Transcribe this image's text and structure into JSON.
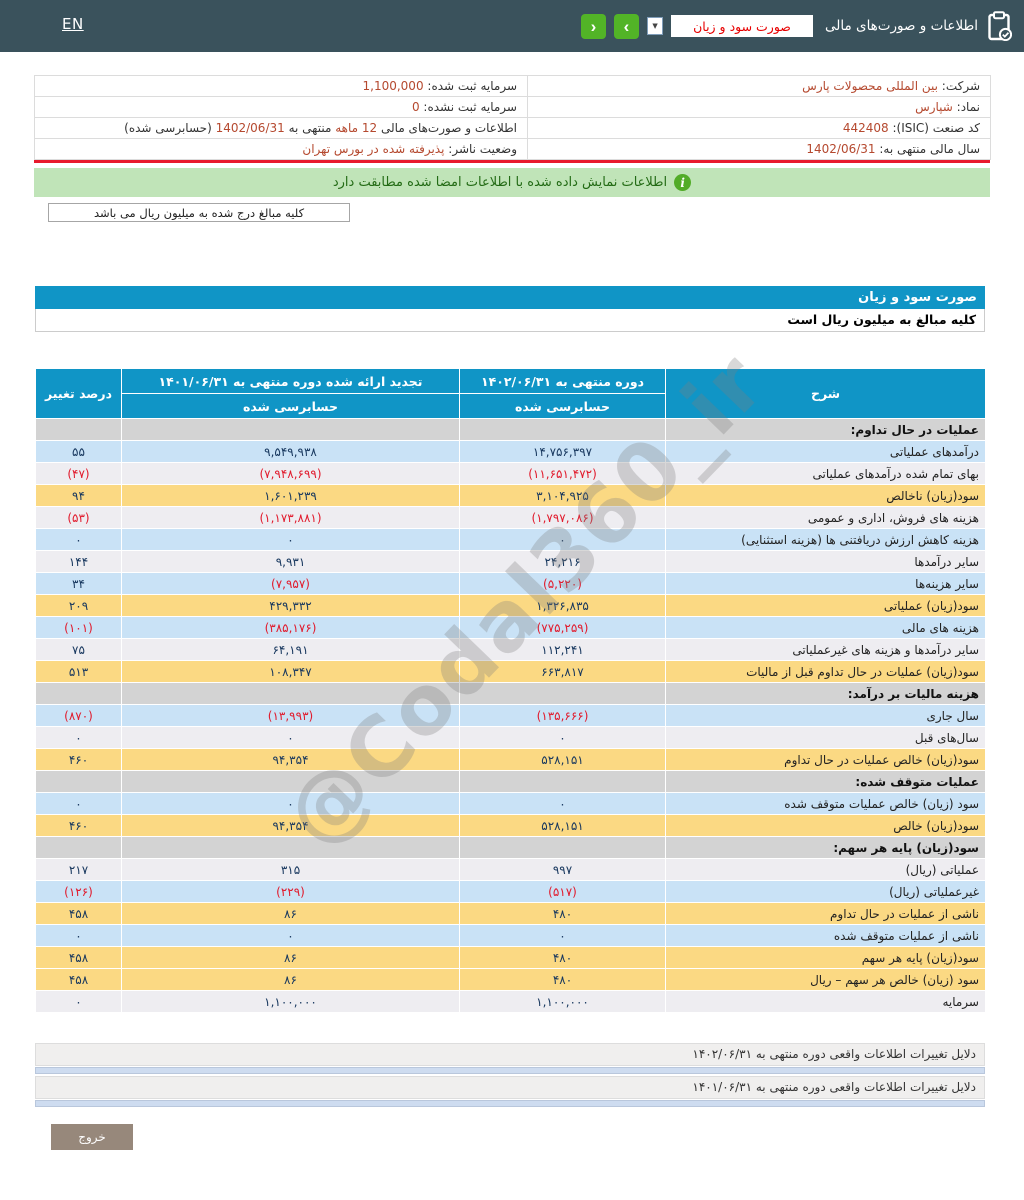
{
  "header": {
    "language_link": "EN",
    "section_title": "اطلاعات و صورت‌های مالی",
    "statement_select_value": "صورت سود و زیان",
    "select_arrow": "▼",
    "prev_button": "‹",
    "next_button": "›"
  },
  "company_info": {
    "rows": [
      {
        "right": [
          {
            "t": "شرکت:",
            "hl": false
          },
          {
            "t": "بین المللی محصولات پارس",
            "hl": true
          }
        ],
        "left": [
          {
            "t": "سرمایه ثبت شده:",
            "hl": false
          },
          {
            "t": "1,100,000",
            "hl": true
          }
        ]
      },
      {
        "right": [
          {
            "t": "نماد:",
            "hl": false
          },
          {
            "t": "شپارس",
            "hl": true
          }
        ],
        "left": [
          {
            "t": "سرمایه ثبت نشده:",
            "hl": false
          },
          {
            "t": "0",
            "hl": true
          }
        ]
      },
      {
        "right": [
          {
            "t": "کد صنعت (ISIC):",
            "hl": false
          },
          {
            "t": "442408",
            "hl": true
          }
        ],
        "left": [
          {
            "t": "اطلاعات و صورت‌های مالی",
            "hl": false
          },
          {
            "t": "12 ماهه",
            "hl": true
          },
          {
            "t": "منتهی به",
            "hl": false
          },
          {
            "t": "1402/06/31",
            "hl": true
          },
          {
            "t": "(حسابرسی شده)",
            "hl": false
          }
        ]
      },
      {
        "right": [
          {
            "t": "سال مالی منتهی به:",
            "hl": false
          },
          {
            "t": "1402/06/31",
            "hl": true
          }
        ],
        "left": [
          {
            "t": "وضعیت ناشر:",
            "hl": false
          },
          {
            "t": "پذیرفته شده در بورس تهران",
            "hl": true
          }
        ]
      }
    ]
  },
  "notice": {
    "text": "اطلاعات نمایش داده شده با اطلاعات امضا شده مطابقت دارد",
    "units_note": "کلیه مبالغ درج شده به میلیون ریال می باشد"
  },
  "statement": {
    "title": "صورت سود و زیان",
    "units_line": "کلیه مبالغ به میلیون ریال است"
  },
  "statement_table": {
    "headers": {
      "desc": "شرح",
      "period1": "دوره منتهی به ۱۴۰۲/۰۶/۳۱",
      "period1_sub": "حسابرسی شده",
      "period2": "تجدید ارائه شده دوره منتهی به ۱۴۰۱/۰۶/۳۱",
      "period2_sub": "حسابرسی شده",
      "pct": "درصد تغییر"
    },
    "rows": [
      {
        "label": "عملیات در حال تداوم:",
        "v1": "",
        "v2": "",
        "pct": "",
        "bg": "section"
      },
      {
        "label": "درآمدهای عملیاتی",
        "v1": "۱۴,۷۵۶,۳۹۷",
        "v2": "۹,۵۴۹,۹۳۸",
        "pct": "۵۵",
        "bg": "blue"
      },
      {
        "label": "بهای تمام شده درآمدهای عملیاتی",
        "v1": "(۱۱,۶۵۱,۴۷۲)",
        "v2": "(۷,۹۴۸,۶۹۹)",
        "pct": "(۴۷)",
        "bg": "gray"
      },
      {
        "label": "سود(زیان) ناخالص",
        "v1": "۳,۱۰۴,۹۲۵",
        "v2": "۱,۶۰۱,۲۳۹",
        "pct": "۹۴",
        "bg": "yellow"
      },
      {
        "label": "هزینه های فروش، اداری و عمومی",
        "v1": "(۱,۷۹۷,۰۸۶)",
        "v2": "(۱,۱۷۳,۸۸۱)",
        "pct": "(۵۳)",
        "bg": "gray"
      },
      {
        "label": "هزینه کاهش ارزش دریافتنی ها (هزینه استثنایی)",
        "v1": "۰",
        "v2": "۰",
        "pct": "۰",
        "bg": "blue"
      },
      {
        "label": "سایر درآمدها",
        "v1": "۲۴,۲۱۶",
        "v2": "۹,۹۳۱",
        "pct": "۱۴۴",
        "bg": "gray"
      },
      {
        "label": "سایر هزینه‌ها",
        "v1": "(۵,۲۲۰)",
        "v2": "(۷,۹۵۷)",
        "pct": "۳۴",
        "bg": "blue"
      },
      {
        "label": "سود(زیان) عملیاتی",
        "v1": "۱,۳۲۶,۸۳۵",
        "v2": "۴۲۹,۳۳۲",
        "pct": "۲۰۹",
        "bg": "yellow"
      },
      {
        "label": "هزینه های مالی",
        "v1": "(۷۷۵,۲۵۹)",
        "v2": "(۳۸۵,۱۷۶)",
        "pct": "(۱۰۱)",
        "bg": "blue"
      },
      {
        "label": "سایر درآمدها و هزینه های غیرعملیاتی",
        "v1": "۱۱۲,۲۴۱",
        "v2": "۶۴,۱۹۱",
        "pct": "۷۵",
        "bg": "gray"
      },
      {
        "label": "سود(زیان) عملیات در حال تداوم قبل از مالیات",
        "v1": "۶۶۳,۸۱۷",
        "v2": "۱۰۸,۳۴۷",
        "pct": "۵۱۳",
        "bg": "yellow"
      },
      {
        "label": "هزینه مالیات بر درآمد:",
        "v1": "",
        "v2": "",
        "pct": "",
        "bg": "section"
      },
      {
        "label": "سال جاری",
        "v1": "(۱۳۵,۶۶۶)",
        "v2": "(۱۳,۹۹۳)",
        "pct": "(۸۷۰)",
        "bg": "blue"
      },
      {
        "label": "سال‌های قبل",
        "v1": "۰",
        "v2": "۰",
        "pct": "۰",
        "bg": "gray"
      },
      {
        "label": "سود(زیان) خالص عملیات در حال تداوم",
        "v1": "۵۲۸,۱۵۱",
        "v2": "۹۴,۳۵۴",
        "pct": "۴۶۰",
        "bg": "yellow"
      },
      {
        "label": "عملیات متوقف شده:",
        "v1": "",
        "v2": "",
        "pct": "",
        "bg": "section"
      },
      {
        "label": "سود (زیان) خالص عملیات متوقف شده",
        "v1": "۰",
        "v2": "۰",
        "pct": "۰",
        "bg": "blue"
      },
      {
        "label": "سود(زیان) خالص",
        "v1": "۵۲۸,۱۵۱",
        "v2": "۹۴,۳۵۴",
        "pct": "۴۶۰",
        "bg": "yellow"
      },
      {
        "label": "سود(زیان) پایه هر سهم:",
        "v1": "",
        "v2": "",
        "pct": "",
        "bg": "section"
      },
      {
        "label": "عملیاتی (ریال)",
        "v1": "۹۹۷",
        "v2": "۳۱۵",
        "pct": "۲۱۷",
        "bg": "gray"
      },
      {
        "label": "غیرعملیاتی (ریال)",
        "v1": "(۵۱۷)",
        "v2": "(۲۲۹)",
        "pct": "(۱۲۶)",
        "bg": "blue"
      },
      {
        "label": "ناشی از عملیات در حال تداوم",
        "v1": "۴۸۰",
        "v2": "۸۶",
        "pct": "۴۵۸",
        "bg": "yellow"
      },
      {
        "label": "ناشی از عملیات متوقف شده",
        "v1": "۰",
        "v2": "۰",
        "pct": "۰",
        "bg": "blue"
      },
      {
        "label": "سود(زیان) پایه هر سهم",
        "v1": "۴۸۰",
        "v2": "۸۶",
        "pct": "۴۵۸",
        "bg": "yellow"
      },
      {
        "label": "سود (زیان) خالص هر سهم – ریال",
        "v1": "۴۸۰",
        "v2": "۸۶",
        "pct": "۴۵۸",
        "bg": "yellow"
      },
      {
        "label": "سرمایه",
        "v1": "۱,۱۰۰,۰۰۰",
        "v2": "۱,۱۰۰,۰۰۰",
        "pct": "۰",
        "bg": "gray"
      }
    ]
  },
  "watermark": {
    "text": "@Codal360_ir"
  },
  "footer_bars": [
    {
      "label": "دلایل تغییرات اطلاعات واقعی دوره منتهی به ۱۴۰۲/۰۶/۳۱"
    },
    {
      "label": "دلایل تغییرات اطلاعات واقعی دوره منتهی به ۱۴۰۱/۰۶/۳۱"
    }
  ],
  "footer": {
    "exit_label": "خروج"
  },
  "colors": {
    "topbar": "#3a525c",
    "accent_blue": "#1095c6",
    "nav_green": "#52b427",
    "row_blue": "#c9e2f6",
    "row_yellow": "#fbd983",
    "row_gray": "#eeedf1",
    "row_section": "#d3d3d3",
    "negative_red": "#e11b2d",
    "value_navy": "#17375e",
    "info_value": "#b5492f",
    "notice_green_bg": "#c0e4b8",
    "divider_red": "#e8192c",
    "exit_brown": "#97887b"
  }
}
